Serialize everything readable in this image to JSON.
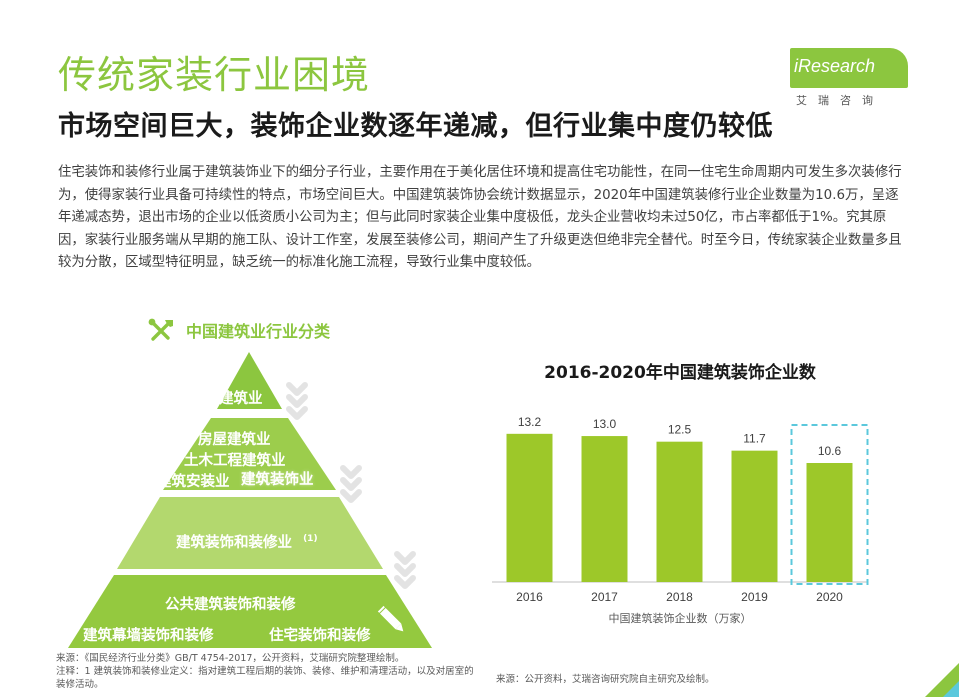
{
  "header": {
    "title": "传统家装行业困境",
    "subtitle": "市场空间巨大，装饰企业数逐年递减，但行业集中度仍较低"
  },
  "logo": {
    "brand": "iResearch",
    "brand_cn": "艾瑞咨询"
  },
  "paragraph": "住宅装饰和装修行业属于建筑装饰业下的细分子行业，主要作用在于美化居住环境和提高住宅功能性，在同一住宅生命周期内可发生多次装修行为，使得家装行业具备可持续性的特点，市场空间巨大。中国建筑装饰协会统计数据显示，2020年中国建筑装修行业企业数量为10.6万，呈逐年递减态势，退出市场的企业以低资质小公司为主；但与此同时家装企业集中度极低，龙头企业营收均未过50亿，市占率都低于1%。究其原因，家装行业服务端从早期的施工队、设计工作室，发展至装修公司，期间产生了升级更迭但绝非完全替代。时至今日，传统家装企业数量多且较为分散，区域型特征明显，缺乏统一的标准化施工流程，导致行业集中度较低。",
  "pyramid": {
    "heading": "中国建筑业行业分类",
    "level1": "建筑业",
    "level2_a": "房屋建筑业",
    "level2_b": "土木工程建筑业",
    "level2_c": "建筑安装业",
    "level2_d": "建筑装饰业",
    "level3": "建筑装饰和装修业",
    "level3_note": "(1)",
    "level4_a": "公共建筑装饰和装修",
    "level4_b": "建筑幕墙装饰和装修",
    "level4_c": "住宅装饰和装修"
  },
  "colors": {
    "accent": "#8cc63f",
    "pyramid_top": "#8cc63f",
    "pyramid_mid": "#9ccd4c",
    "pyramid_low": "#b3d86e",
    "pyramid_base": "#94c93f",
    "bar": "#9dc829",
    "highlight_box": "#5bc8dc"
  },
  "chart_data": {
    "type": "bar",
    "title": "2016-2020年中国建筑装饰企业数",
    "categories": [
      "2016",
      "2017",
      "2018",
      "2019",
      "2020"
    ],
    "series": [
      {
        "name": "中国建筑装饰企业数（万家）",
        "values": [
          13.2,
          13.0,
          12.5,
          11.7,
          10.6
        ]
      }
    ],
    "value_labels": [
      "13.2",
      "13.0",
      "12.5",
      "11.7",
      "10.6"
    ],
    "highlighted_category": "2020",
    "ylim": [
      0,
      15.5
    ],
    "grid": false,
    "legend": "bottom"
  },
  "sources": {
    "left_line1": "来源：《国民经济行业分类》GB/T 4754-2017，公开资料，艾瑞研究院整理绘制。",
    "left_line2": "注释：1 建筑装饰和装修业定义：指对建筑工程后期的装饰、装修、维护和清理活动，以及对居室的装修活动。",
    "right": "来源：公开资料，艾瑞咨询研究院自主研究及绘制。"
  }
}
